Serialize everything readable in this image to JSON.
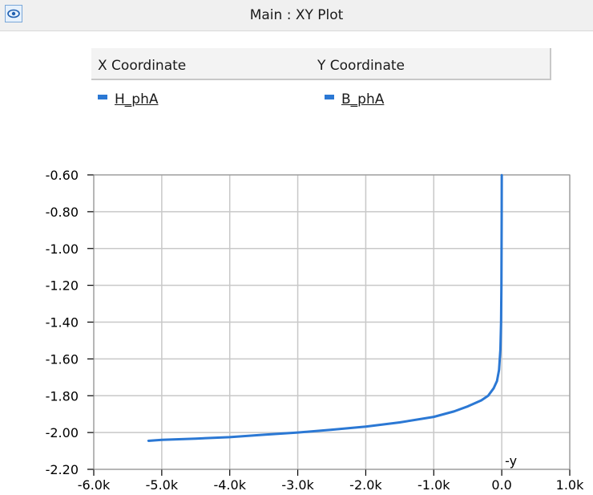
{
  "window": {
    "title": "Main : XY Plot"
  },
  "legend": {
    "x_header": "X Coordinate",
    "y_header": "Y Coordinate",
    "x_signal": "H_phA",
    "y_signal": "B_phA"
  },
  "colors": {
    "series": "#2b78d4",
    "grid": "#c8c8c8",
    "frame": "#8a8a8a"
  },
  "icons": {
    "app": "eye-icon"
  },
  "chart_data": {
    "type": "line",
    "title": "",
    "xlabel": "",
    "ylabel": "",
    "xlim": [
      -6000,
      1000
    ],
    "ylim": [
      -2.2,
      -0.6
    ],
    "x_ticks": [
      -6000,
      -5000,
      -4000,
      -3000,
      -2000,
      -1000,
      0,
      1000
    ],
    "x_tick_labels": [
      "-6.0k",
      "-5.0k",
      "-4.0k",
      "-3.0k",
      "-2.0k",
      "-1.0k",
      "0.0",
      "1.0k"
    ],
    "y_ticks": [
      -0.6,
      -0.8,
      -1.0,
      -1.2,
      -1.4,
      -1.6,
      -1.8,
      -2.0,
      -2.2
    ],
    "y_tick_labels": [
      "-0.60",
      "-0.80",
      "-1.00",
      "-1.20",
      "-1.40",
      "-1.60",
      "-1.80",
      "-2.00",
      "-2.20"
    ],
    "grid": true,
    "annotations": [
      {
        "text": "-y",
        "x": 0,
        "y": -2.2,
        "position": "bottom-right of zero"
      }
    ],
    "series": [
      {
        "points": [
          [
            -5200,
            -2.045
          ],
          [
            -5000,
            -2.04
          ],
          [
            -4500,
            -2.033
          ],
          [
            -4000,
            -2.025
          ],
          [
            -3500,
            -2.012
          ],
          [
            -3000,
            -2.0
          ],
          [
            -2500,
            -1.985
          ],
          [
            -2000,
            -1.968
          ],
          [
            -1500,
            -1.945
          ],
          [
            -1000,
            -1.915
          ],
          [
            -700,
            -1.885
          ],
          [
            -500,
            -1.858
          ],
          [
            -300,
            -1.825
          ],
          [
            -200,
            -1.8
          ],
          [
            -120,
            -1.76
          ],
          [
            -70,
            -1.72
          ],
          [
            -40,
            -1.66
          ],
          [
            -20,
            -1.55
          ],
          [
            -10,
            -1.4
          ],
          [
            -5,
            -1.2
          ],
          [
            -3,
            -1.0
          ],
          [
            -1,
            -0.8
          ],
          [
            0,
            -0.6
          ]
        ]
      }
    ]
  }
}
